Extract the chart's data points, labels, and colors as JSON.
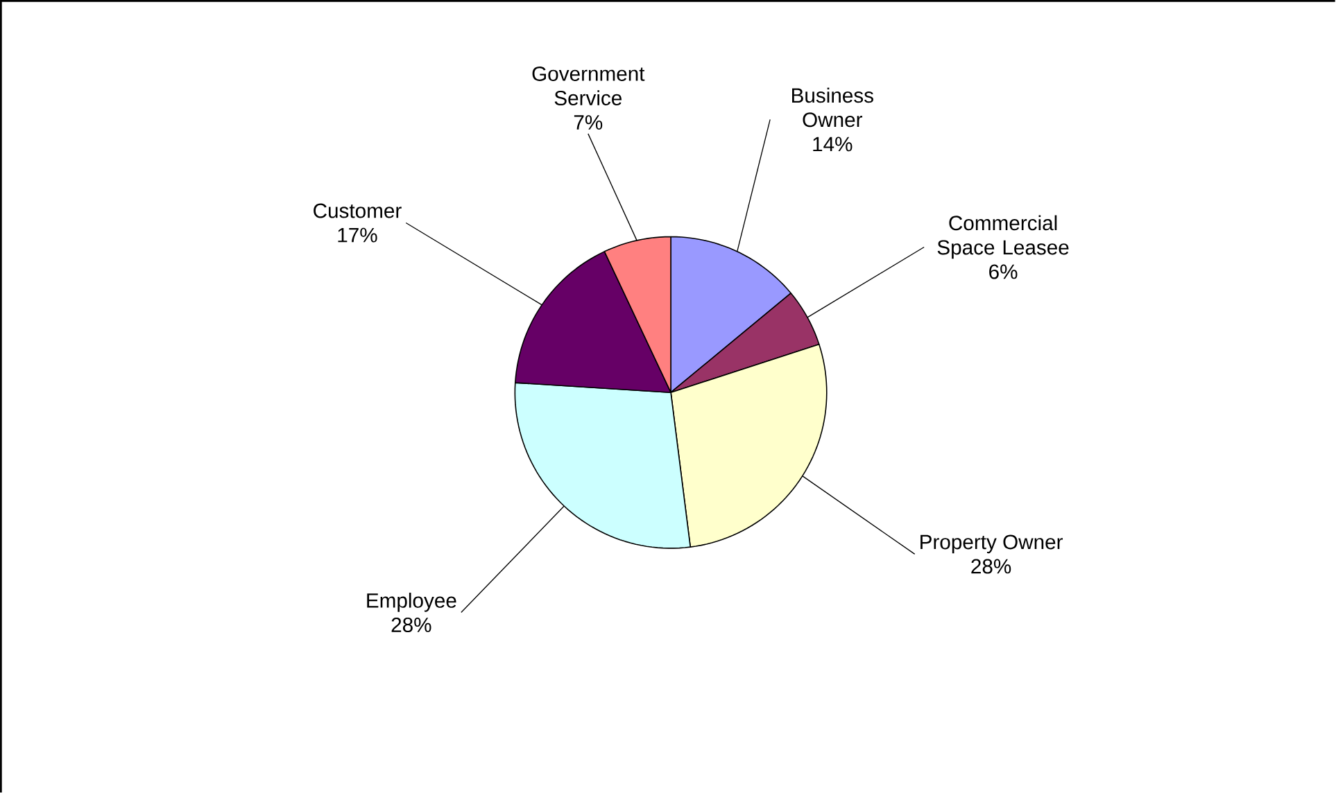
{
  "chart_data": {
    "type": "pie",
    "categories": [
      "Business Owner",
      "Commercial Space Leasee",
      "Property Owner",
      "Employee",
      "Customer",
      "Government Service"
    ],
    "values": [
      14,
      6,
      28,
      28,
      17,
      7
    ],
    "value_labels": [
      "14%",
      "6%",
      "28%",
      "28%",
      "17%",
      "7%"
    ],
    "colors": [
      "#9999ff",
      "#993366",
      "#ffffcc",
      "#ccffff",
      "#660066",
      "#ff8080"
    ],
    "legend": false
  }
}
